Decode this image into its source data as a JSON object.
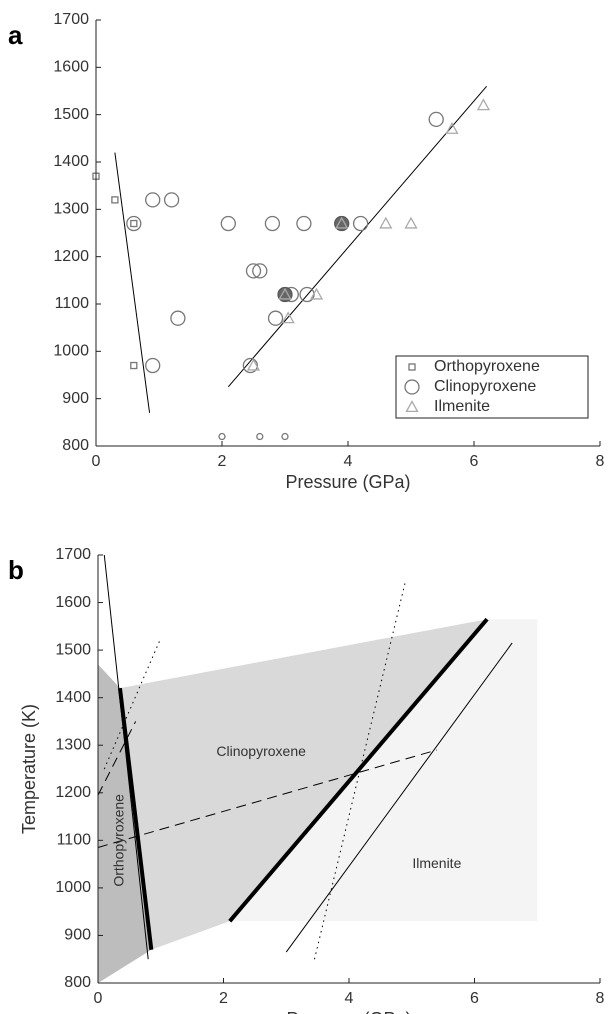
{
  "chart_data": [
    {
      "type": "scatter",
      "panel_label": "a",
      "x_label": "Pressure (GPa)",
      "xlim": [
        0,
        8
      ],
      "ylim": [
        800,
        1700
      ],
      "xticks": [
        0,
        2,
        4,
        6,
        8
      ],
      "yticks": [
        800,
        900,
        1000,
        1100,
        1200,
        1300,
        1400,
        1500,
        1600,
        1700
      ],
      "legend": "lower right",
      "series": [
        {
          "name": "Orthopyroxene",
          "marker": "square",
          "color": "#777777",
          "size": 6,
          "x": [
            0,
            0.3,
            0.6,
            0.6
          ],
          "y": [
            1370,
            1320,
            1270,
            970
          ]
        },
        {
          "name": "Clinopyroxene",
          "marker": "circle",
          "color": "#777777",
          "size": 14,
          "x": [
            0.6,
            0.9,
            1.2,
            0.9,
            1.3,
            2.1,
            2.8,
            3.3,
            3.9,
            4.2,
            2.5,
            2.6,
            3.0,
            3.1,
            3.35,
            2.85,
            2.45,
            5.4
          ],
          "y": [
            1270,
            1320,
            1320,
            970,
            1070,
            1270,
            1270,
            1270,
            1270,
            1270,
            1170,
            1170,
            1120,
            1120,
            1120,
            1070,
            970,
            1490
          ]
        },
        {
          "marker": "circle",
          "color": "#777777",
          "size": 6,
          "x": [
            2,
            2.6,
            3
          ],
          "y": [
            820,
            820,
            820
          ]
        },
        {
          "marker": "filled-circle",
          "color": "#666666",
          "size": 14,
          "x": [
            3.9,
            3.0
          ],
          "y": [
            1270,
            1120
          ]
        },
        {
          "name": "Ilmenite",
          "marker": "triangle",
          "color": "#aaaaaa",
          "size": 11,
          "x": [
            3.9,
            4.6,
            5.0,
            3.0,
            3.5,
            3.05,
            2.5,
            5.65,
            6.15
          ],
          "y": [
            1270,
            1270,
            1270,
            1120,
            1120,
            1070,
            970,
            1470,
            1520
          ]
        }
      ],
      "lines": [
        {
          "style": "solid",
          "x": [
            0.3,
            0.85
          ],
          "y": [
            1420,
            870
          ]
        },
        {
          "style": "solid",
          "x": [
            2.1,
            6.2
          ],
          "y": [
            925,
            1560
          ]
        }
      ]
    },
    {
      "type": "phase-diagram",
      "panel_label": "b",
      "x_label": "Pressure (GPa)",
      "y_label": "Temperature (K)",
      "xlim": [
        0,
        8
      ],
      "ylim": [
        800,
        1700
      ],
      "xticks": [
        0,
        2,
        4,
        6,
        8
      ],
      "yticks": [
        800,
        900,
        1000,
        1100,
        1200,
        1300,
        1400,
        1500,
        1600,
        1700
      ],
      "regions": [
        {
          "color": "#f4f4f4",
          "x": [
            2.1,
            6.2,
            7,
            7
          ],
          "y": [
            930,
            1565,
            1565,
            930
          ]
        },
        {
          "color": "#d9d9d9",
          "x": [
            0,
            0,
            0.35,
            6.2,
            2.1,
            0.85
          ],
          "y": [
            800,
            1470,
            1420,
            1565,
            930,
            870
          ]
        },
        {
          "color": "#bdbdbd",
          "x": [
            0,
            0,
            0.35,
            0.85
          ],
          "y": [
            800,
            1470,
            1420,
            870
          ]
        }
      ],
      "lines": [
        {
          "style": "solid",
          "x": [
            0.1,
            0.8
          ],
          "y": [
            1700,
            850
          ]
        },
        {
          "style": "thick",
          "x": [
            0.35,
            0.85
          ],
          "y": [
            1420,
            870
          ]
        },
        {
          "style": "thick",
          "x": [
            2.1,
            6.2
          ],
          "y": [
            930,
            1565
          ]
        },
        {
          "style": "solid",
          "x": [
            3.0,
            6.6
          ],
          "y": [
            865,
            1515
          ]
        },
        {
          "style": "dotted",
          "x": [
            0.1,
            1.0
          ],
          "y": [
            1250,
            1525
          ]
        },
        {
          "style": "dotted",
          "x": [
            3.45,
            4.9
          ],
          "y": [
            850,
            1645
          ]
        },
        {
          "style": "dashed",
          "x": [
            0,
            5.4
          ],
          "y": [
            1085,
            1290
          ]
        },
        {
          "style": "dashed",
          "x": [
            0,
            0.6
          ],
          "y": [
            1195,
            1350
          ]
        }
      ],
      "annotations": [
        {
          "text": "Clinopyroxene",
          "x": 2.6,
          "y": 1285,
          "rotate": 0
        },
        {
          "text": "Ilmenite",
          "x": 5.4,
          "y": 1050,
          "rotate": 0
        },
        {
          "text": "Orthopyroxene",
          "x": 0.35,
          "y": 1100,
          "rotate": -90
        }
      ]
    }
  ]
}
